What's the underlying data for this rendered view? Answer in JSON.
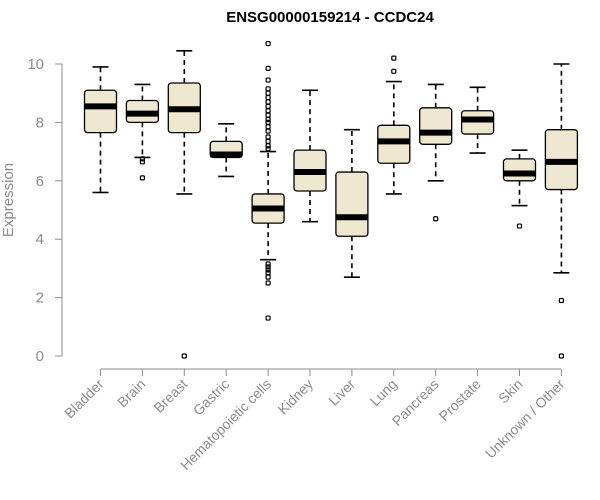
{
  "chart_data": {
    "type": "box",
    "title": "ENSG00000159214 - CCDC24",
    "ylabel": "Expression",
    "ylim": [
      0,
      10.7
    ],
    "yticks": [
      0,
      2,
      4,
      6,
      8,
      10
    ],
    "grid": false,
    "colors": {
      "box_fill": "#efe8d0",
      "box_stroke": "#000000",
      "axis": "#8c8c8c"
    },
    "categories": [
      "Bladder",
      "Brain",
      "Breast",
      "Gastric",
      "Hematopoietic cells",
      "Kidney",
      "Liver",
      "Lung",
      "Pancreas",
      "Prostate",
      "Skin",
      "Unknown / Other"
    ],
    "boxes": [
      {
        "category": "Bladder",
        "whisker_low": 5.6,
        "q1": 7.65,
        "median": 8.55,
        "q3": 9.1,
        "whisker_high": 9.9,
        "outliers": []
      },
      {
        "category": "Brain",
        "whisker_low": 6.8,
        "q1": 8.0,
        "median": 8.3,
        "q3": 8.75,
        "whisker_high": 9.3,
        "outliers": [
          6.1,
          6.65,
          6.75
        ]
      },
      {
        "category": "Breast",
        "whisker_low": 5.55,
        "q1": 7.65,
        "median": 8.45,
        "q3": 9.35,
        "whisker_high": 10.45,
        "outliers": [
          0.0
        ]
      },
      {
        "category": "Gastric",
        "whisker_low": 6.15,
        "q1": 6.8,
        "median": 6.9,
        "q3": 7.35,
        "whisker_high": 7.95,
        "outliers": []
      },
      {
        "category": "Hematopoietic cells",
        "whisker_low": 3.3,
        "q1": 4.55,
        "median": 5.05,
        "q3": 5.55,
        "whisker_high": 7.0,
        "outliers": [
          1.3,
          2.5,
          2.7,
          2.85,
          2.95,
          3.05,
          3.15,
          7.1,
          7.2,
          7.35,
          7.5,
          7.7,
          7.85,
          8.0,
          8.1,
          8.25,
          8.4,
          8.55,
          8.7,
          8.85,
          9.0,
          9.15,
          9.45,
          9.85,
          10.7
        ]
      },
      {
        "category": "Kidney",
        "whisker_low": 4.6,
        "q1": 5.65,
        "median": 6.3,
        "q3": 7.05,
        "whisker_high": 9.1,
        "outliers": []
      },
      {
        "category": "Liver",
        "whisker_low": 2.7,
        "q1": 4.1,
        "median": 4.75,
        "q3": 6.3,
        "whisker_high": 7.75,
        "outliers": []
      },
      {
        "category": "Lung",
        "whisker_low": 5.55,
        "q1": 6.6,
        "median": 7.35,
        "q3": 7.9,
        "whisker_high": 9.4,
        "outliers": [
          9.75,
          10.2
        ]
      },
      {
        "category": "Pancreas",
        "whisker_low": 6.0,
        "q1": 7.25,
        "median": 7.65,
        "q3": 8.5,
        "whisker_high": 9.3,
        "outliers": [
          4.7
        ]
      },
      {
        "category": "Prostate",
        "whisker_low": 6.95,
        "q1": 7.6,
        "median": 8.1,
        "q3": 8.4,
        "whisker_high": 9.2,
        "outliers": []
      },
      {
        "category": "Skin",
        "whisker_low": 5.15,
        "q1": 6.0,
        "median": 6.25,
        "q3": 6.75,
        "whisker_high": 7.05,
        "outliers": [
          4.45
        ]
      },
      {
        "category": "Unknown / Other",
        "whisker_low": 2.85,
        "q1": 5.7,
        "median": 6.65,
        "q3": 7.75,
        "whisker_high": 10.0,
        "outliers": [
          0.0,
          1.9
        ]
      }
    ]
  }
}
